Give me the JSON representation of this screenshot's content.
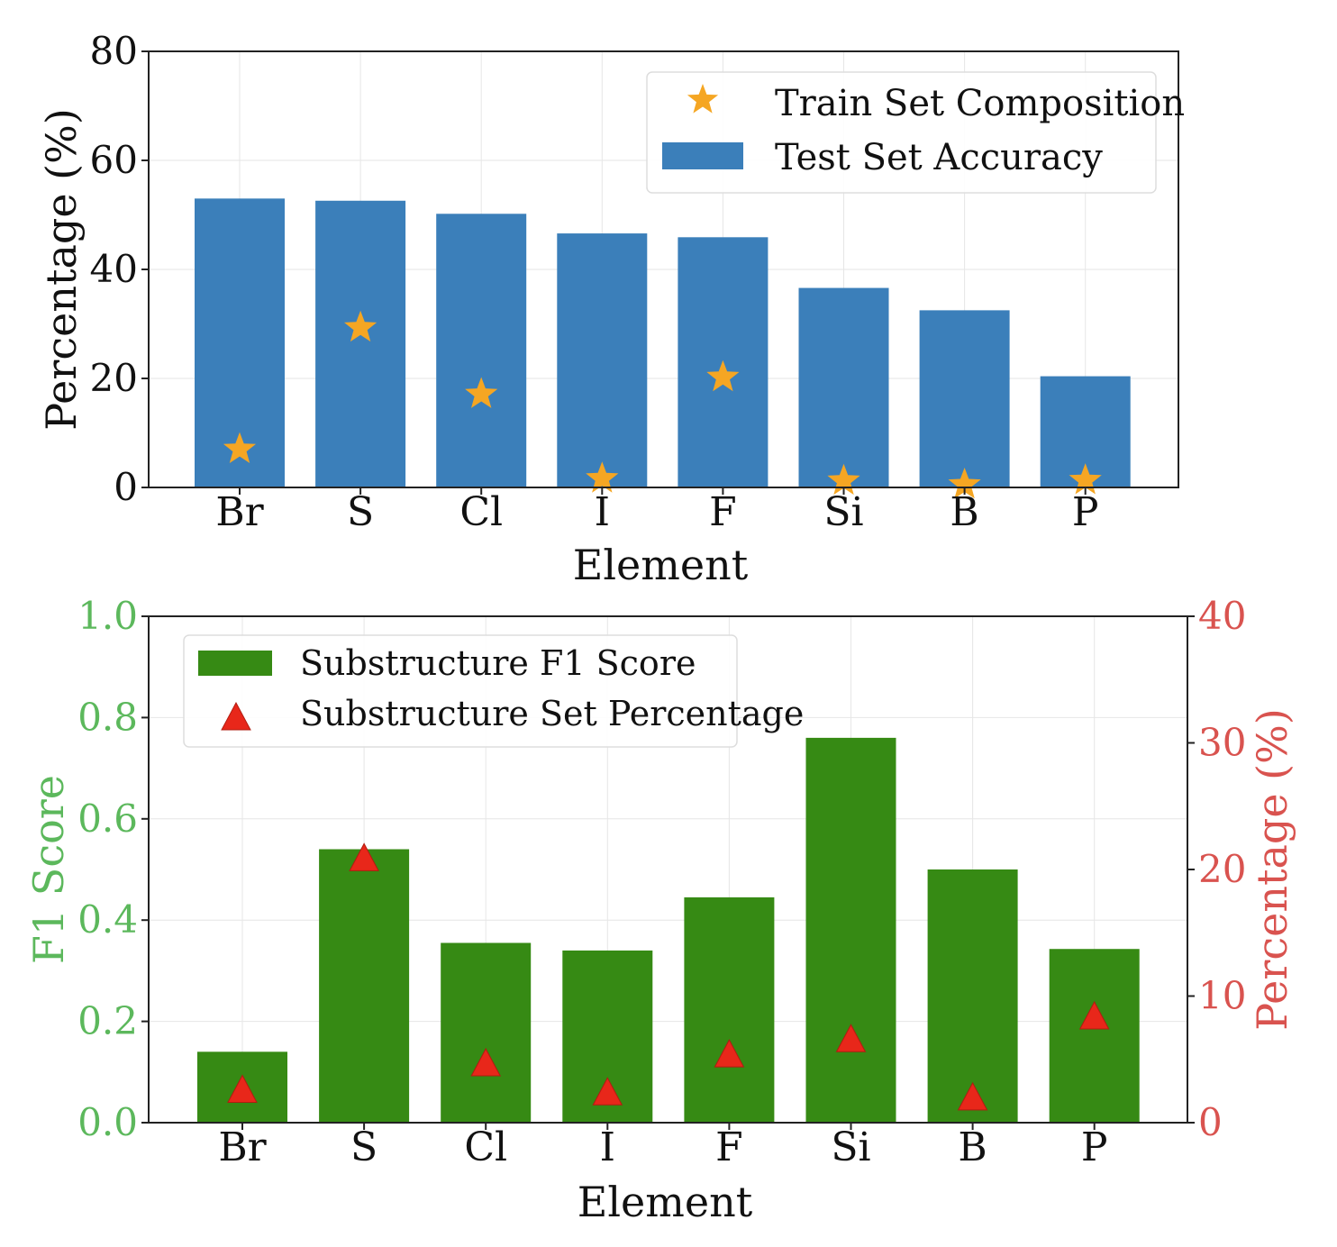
{
  "chart_data": [
    {
      "type": "bar",
      "title": "",
      "xlabel": "Element",
      "ylabel": "Percentage (%)",
      "categories": [
        "Br",
        "S",
        "Cl",
        "I",
        "F",
        "Si",
        "B",
        "P"
      ],
      "ylim": [
        0,
        80
      ],
      "yticks": [
        "0",
        "20",
        "40",
        "60",
        "80"
      ],
      "grid": true,
      "legend_position": "top-right",
      "series": [
        {
          "name": "Test Set Accuracy",
          "kind": "bar",
          "color": "#3b7fba",
          "values": [
            53.0,
            52.6,
            50.2,
            46.6,
            45.9,
            36.6,
            32.5,
            20.4
          ]
        },
        {
          "name": "Train Set Composition",
          "kind": "star",
          "color": "#f5a623",
          "values": [
            7.0,
            29.3,
            17.1,
            1.6,
            20.2,
            1.2,
            0.5,
            1.3
          ]
        }
      ]
    },
    {
      "type": "bar",
      "title": "",
      "xlabel": "Element",
      "ylabel": "F1 Score",
      "y2label": "Percentage (%)",
      "categories": [
        "Br",
        "S",
        "Cl",
        "I",
        "F",
        "Si",
        "B",
        "P"
      ],
      "ylim": [
        0,
        1.0
      ],
      "y2lim": [
        0,
        40
      ],
      "yticks": [
        "0.0",
        "0.2",
        "0.4",
        "0.6",
        "0.8",
        "1.0"
      ],
      "y2ticks": [
        "0",
        "10",
        "20",
        "30",
        "40"
      ],
      "ylabel_color": "#5cb85c",
      "y2label_color": "#d9534f",
      "grid": true,
      "legend_position": "top-left",
      "series": [
        {
          "name": "Substructure F1 Score",
          "kind": "bar",
          "axis": "left",
          "color": "#368a14",
          "values": [
            0.14,
            0.54,
            0.355,
            0.34,
            0.445,
            0.76,
            0.5,
            0.343
          ]
        },
        {
          "name": "Substructure Set Percentage",
          "kind": "triangle",
          "axis": "right",
          "color": "#e8271a",
          "values": [
            2.6,
            20.9,
            4.7,
            2.4,
            5.4,
            6.6,
            2.0,
            8.4
          ]
        }
      ]
    }
  ]
}
